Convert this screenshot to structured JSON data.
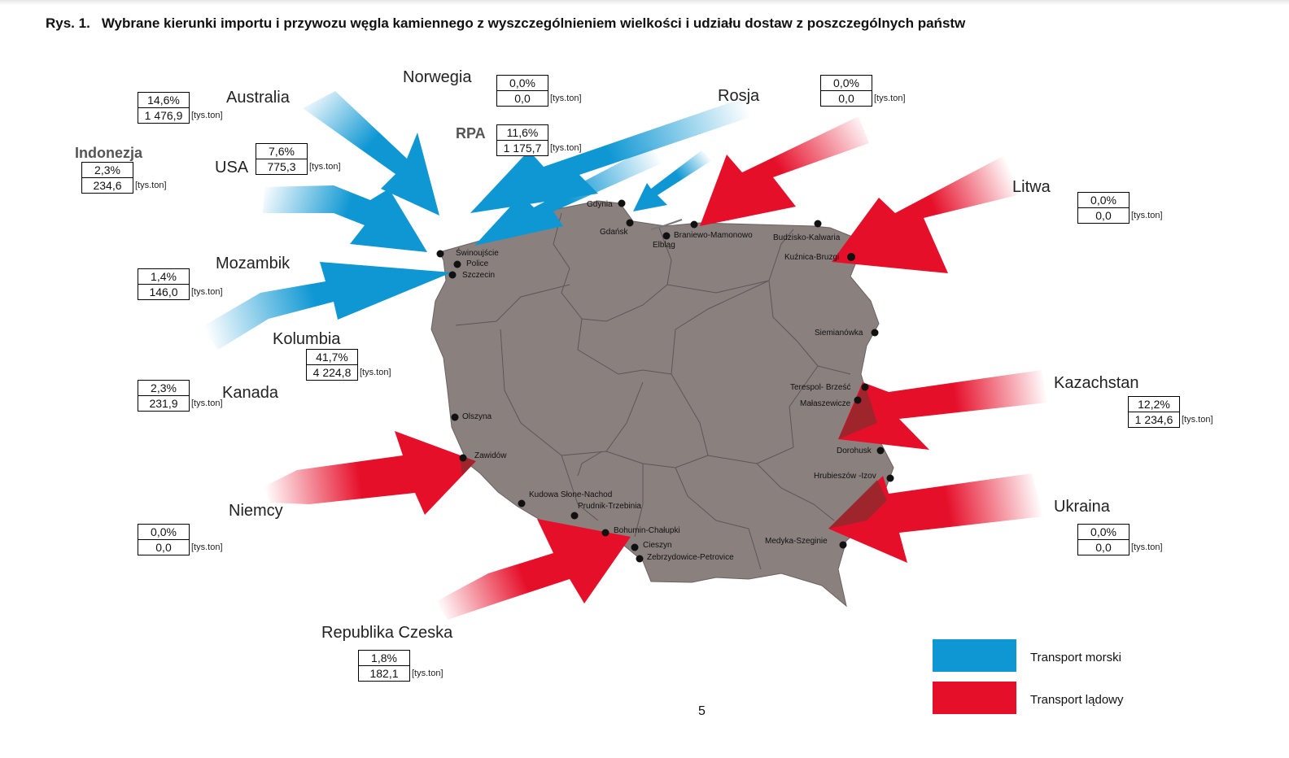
{
  "figure": {
    "number": "Rys. 1.",
    "title": "Wybrane kierunki importu i przywozu węgla kamiennego z wyszczególnieniem wielkości i udziału dostaw z poszczególnych państw"
  },
  "unit_label": "[tys.ton]",
  "countries": [
    {
      "id": "australia",
      "name": "Australia",
      "share": "14,6%",
      "volume": "1 476,9",
      "transport": "sea"
    },
    {
      "id": "norwegia",
      "name": "Norwegia",
      "share": "0,0%",
      "volume": "0,0",
      "transport": "sea"
    },
    {
      "id": "rpa",
      "name": "RPA",
      "share": "11,6%",
      "volume": "1 175,7",
      "transport": "sea"
    },
    {
      "id": "rosja",
      "name": "Rosja",
      "share": "0,0%",
      "volume": "0,0",
      "transport": "sea"
    },
    {
      "id": "indonezja",
      "name": "Indonezja",
      "share": "2,3%",
      "volume": "234,6",
      "transport": "sea"
    },
    {
      "id": "usa",
      "name": "USA",
      "share": "7,6%",
      "volume": "775,3",
      "transport": "sea"
    },
    {
      "id": "mozambik",
      "name": "Mozambik",
      "share": "1,4%",
      "volume": "146,0",
      "transport": "sea"
    },
    {
      "id": "kolumbia",
      "name": "Kolumbia",
      "share": "41,7%",
      "volume": "4 224,8",
      "transport": "sea"
    },
    {
      "id": "kanada",
      "name": "Kanada",
      "share": "2,3%",
      "volume": "231,9",
      "transport": "sea"
    },
    {
      "id": "niemcy",
      "name": "Niemcy",
      "share": "0,0%",
      "volume": "0,0",
      "transport": "land"
    },
    {
      "id": "czechy",
      "name": "Republika Czeska",
      "share": "1,8%",
      "volume": "182,1",
      "transport": "land"
    },
    {
      "id": "litwa",
      "name": "Litwa",
      "share": "0,0%",
      "volume": "0,0",
      "transport": "land"
    },
    {
      "id": "kazachstan",
      "name": "Kazachstan",
      "share": "12,2%",
      "volume": "1 234,6",
      "transport": "land"
    },
    {
      "id": "ukraina",
      "name": "Ukraina",
      "share": "0,0%",
      "volume": "0,0",
      "transport": "land"
    }
  ],
  "ports": [
    "Świnoujście",
    "Police",
    "Szczecin",
    "Gdynia",
    "Gdańsk",
    "Elbląg",
    "Braniewo-Mamonowo",
    "Budzisko-Kalwaria",
    "Kuźnica-Bruzgi",
    "Siemianówka",
    "Terespol- Brześć",
    "Małaszewicze",
    "Dorohusk",
    "Hrubieszów -Izov",
    "Medyka-Szeginie",
    "Olszyna",
    "Zawidów",
    "Kudowa Słone-Nachod",
    "Prudnik-Trzebinia",
    "Bohumin-Chałupki",
    "Cieszyn",
    "Zebrzydowice-Petrovice"
  ],
  "legend": {
    "sea_label": "Transport morski",
    "land_label": "Transport lądowy",
    "sea_color": "#0e97d3",
    "land_color": "#e60f2a"
  },
  "colors": {
    "map_fill": "#8a817f",
    "border_line": "#5e5655"
  },
  "page_number": "5"
}
